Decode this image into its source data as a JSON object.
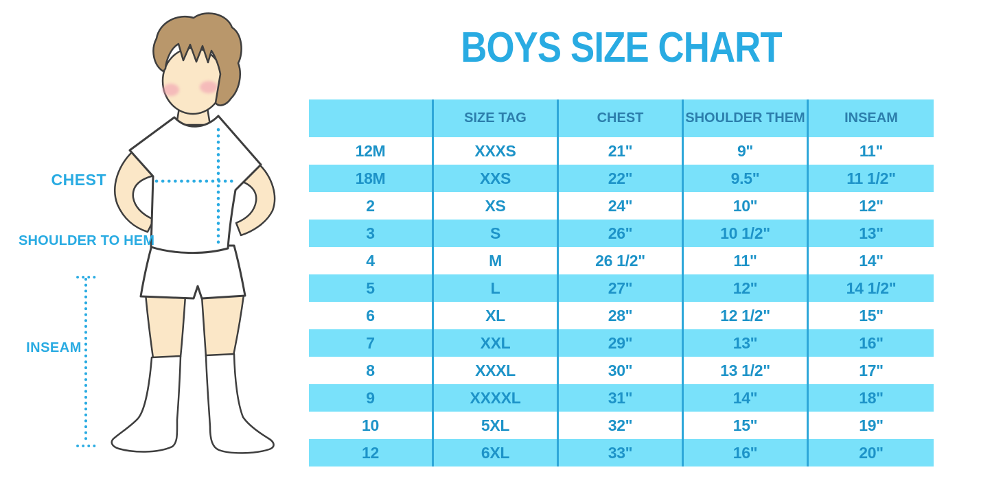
{
  "title": "BOYS SIZE CHART",
  "figure": {
    "description": "boy-illustration-with-measurement-lines",
    "labels": {
      "chest": "CHEST",
      "shoulder_to_hem": "SHOULDER TO HEM",
      "inseam": "INSEAM"
    }
  },
  "table": {
    "headers": [
      "",
      "SIZE TAG",
      "CHEST",
      "SHOULDER THEM",
      "INSEAM"
    ],
    "rows": [
      [
        "12M",
        "XXXS",
        "21\"",
        "9\"",
        "11\""
      ],
      [
        "18M",
        "XXS",
        "22\"",
        "9.5\"",
        "11 1/2\""
      ],
      [
        "2",
        "XS",
        "24\"",
        "10\"",
        "12\""
      ],
      [
        "3",
        "S",
        "26\"",
        "10 1/2\"",
        "13\""
      ],
      [
        "4",
        "M",
        "26 1/2\"",
        "11\"",
        "14\""
      ],
      [
        "5",
        "L",
        "27\"",
        "12\"",
        "14 1/2\""
      ],
      [
        "6",
        "XL",
        "28\"",
        "12 1/2\"",
        "15\""
      ],
      [
        "7",
        "XXL",
        "29\"",
        "13\"",
        "16\""
      ],
      [
        "8",
        "XXXL",
        "30\"",
        "13 1/2\"",
        "17\""
      ],
      [
        "9",
        "XXXXL",
        "31\"",
        "14\"",
        "18\""
      ],
      [
        "10",
        "5XL",
        "32\"",
        "15\"",
        "19\""
      ],
      [
        "12",
        "6XL",
        "33\"",
        "16\"",
        "20\""
      ]
    ]
  },
  "colors": {
    "accent_blue": "#29ABE2",
    "stripe_cyan": "#79E1FA",
    "separator_blue": "#2EA7D9",
    "header_text_blue": "#2C7EAC",
    "cell_text_blue": "#1D93C8",
    "hair_brown": "#B9976B",
    "skin_tone": "#FBE7C7",
    "blush_pink": "#F2A4B4"
  }
}
